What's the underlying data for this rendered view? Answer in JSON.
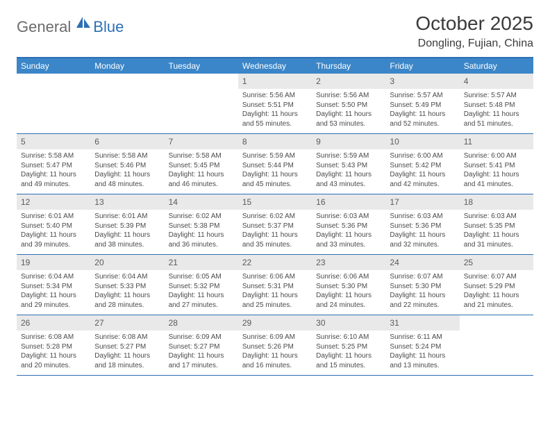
{
  "logo": {
    "part1": "General",
    "part2": "Blue"
  },
  "title": "October 2025",
  "location": "Dongling, Fujian, China",
  "colors": {
    "accent": "#3b86c8",
    "accent_dark": "#2d6fb5",
    "daynum_bg": "#e9e9e9",
    "text_dark": "#3a3a3a"
  },
  "dayheads": [
    "Sunday",
    "Monday",
    "Tuesday",
    "Wednesday",
    "Thursday",
    "Friday",
    "Saturday"
  ],
  "weeks": [
    [
      null,
      null,
      null,
      {
        "n": "1",
        "sr": "5:56 AM",
        "ss": "5:51 PM",
        "dl": "11 hours and 55 minutes."
      },
      {
        "n": "2",
        "sr": "5:56 AM",
        "ss": "5:50 PM",
        "dl": "11 hours and 53 minutes."
      },
      {
        "n": "3",
        "sr": "5:57 AM",
        "ss": "5:49 PM",
        "dl": "11 hours and 52 minutes."
      },
      {
        "n": "4",
        "sr": "5:57 AM",
        "ss": "5:48 PM",
        "dl": "11 hours and 51 minutes."
      }
    ],
    [
      {
        "n": "5",
        "sr": "5:58 AM",
        "ss": "5:47 PM",
        "dl": "11 hours and 49 minutes."
      },
      {
        "n": "6",
        "sr": "5:58 AM",
        "ss": "5:46 PM",
        "dl": "11 hours and 48 minutes."
      },
      {
        "n": "7",
        "sr": "5:58 AM",
        "ss": "5:45 PM",
        "dl": "11 hours and 46 minutes."
      },
      {
        "n": "8",
        "sr": "5:59 AM",
        "ss": "5:44 PM",
        "dl": "11 hours and 45 minutes."
      },
      {
        "n": "9",
        "sr": "5:59 AM",
        "ss": "5:43 PM",
        "dl": "11 hours and 43 minutes."
      },
      {
        "n": "10",
        "sr": "6:00 AM",
        "ss": "5:42 PM",
        "dl": "11 hours and 42 minutes."
      },
      {
        "n": "11",
        "sr": "6:00 AM",
        "ss": "5:41 PM",
        "dl": "11 hours and 41 minutes."
      }
    ],
    [
      {
        "n": "12",
        "sr": "6:01 AM",
        "ss": "5:40 PM",
        "dl": "11 hours and 39 minutes."
      },
      {
        "n": "13",
        "sr": "6:01 AM",
        "ss": "5:39 PM",
        "dl": "11 hours and 38 minutes."
      },
      {
        "n": "14",
        "sr": "6:02 AM",
        "ss": "5:38 PM",
        "dl": "11 hours and 36 minutes."
      },
      {
        "n": "15",
        "sr": "6:02 AM",
        "ss": "5:37 PM",
        "dl": "11 hours and 35 minutes."
      },
      {
        "n": "16",
        "sr": "6:03 AM",
        "ss": "5:36 PM",
        "dl": "11 hours and 33 minutes."
      },
      {
        "n": "17",
        "sr": "6:03 AM",
        "ss": "5:36 PM",
        "dl": "11 hours and 32 minutes."
      },
      {
        "n": "18",
        "sr": "6:03 AM",
        "ss": "5:35 PM",
        "dl": "11 hours and 31 minutes."
      }
    ],
    [
      {
        "n": "19",
        "sr": "6:04 AM",
        "ss": "5:34 PM",
        "dl": "11 hours and 29 minutes."
      },
      {
        "n": "20",
        "sr": "6:04 AM",
        "ss": "5:33 PM",
        "dl": "11 hours and 28 minutes."
      },
      {
        "n": "21",
        "sr": "6:05 AM",
        "ss": "5:32 PM",
        "dl": "11 hours and 27 minutes."
      },
      {
        "n": "22",
        "sr": "6:06 AM",
        "ss": "5:31 PM",
        "dl": "11 hours and 25 minutes."
      },
      {
        "n": "23",
        "sr": "6:06 AM",
        "ss": "5:30 PM",
        "dl": "11 hours and 24 minutes."
      },
      {
        "n": "24",
        "sr": "6:07 AM",
        "ss": "5:30 PM",
        "dl": "11 hours and 22 minutes."
      },
      {
        "n": "25",
        "sr": "6:07 AM",
        "ss": "5:29 PM",
        "dl": "11 hours and 21 minutes."
      }
    ],
    [
      {
        "n": "26",
        "sr": "6:08 AM",
        "ss": "5:28 PM",
        "dl": "11 hours and 20 minutes."
      },
      {
        "n": "27",
        "sr": "6:08 AM",
        "ss": "5:27 PM",
        "dl": "11 hours and 18 minutes."
      },
      {
        "n": "28",
        "sr": "6:09 AM",
        "ss": "5:27 PM",
        "dl": "11 hours and 17 minutes."
      },
      {
        "n": "29",
        "sr": "6:09 AM",
        "ss": "5:26 PM",
        "dl": "11 hours and 16 minutes."
      },
      {
        "n": "30",
        "sr": "6:10 AM",
        "ss": "5:25 PM",
        "dl": "11 hours and 15 minutes."
      },
      {
        "n": "31",
        "sr": "6:11 AM",
        "ss": "5:24 PM",
        "dl": "11 hours and 13 minutes."
      },
      null
    ]
  ],
  "labels": {
    "sunrise": "Sunrise:",
    "sunset": "Sunset:",
    "daylight": "Daylight:"
  }
}
